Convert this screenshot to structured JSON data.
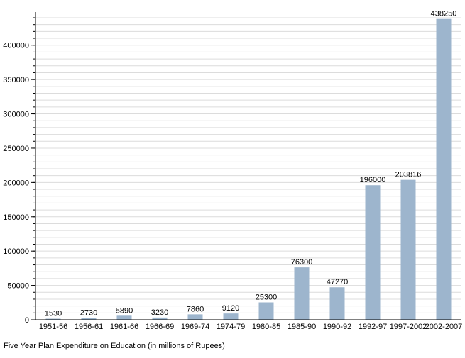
{
  "caption": "Five Year Plan Expenditure on Education (in millions of Rupees)",
  "colors": {
    "bar": "#9db5cd",
    "grid": "#dcdcdc",
    "axis": "#000000",
    "text": "#000000"
  },
  "chart_data": {
    "type": "bar",
    "title": "",
    "xlabel": "",
    "ylabel": "",
    "categories": [
      "1951-56",
      "1956-61",
      "1961-66",
      "1966-69",
      "1969-74",
      "1974-79",
      "1980-85",
      "1985-90",
      "1990-92",
      "1992-97",
      "1997-2002",
      "2002-2007"
    ],
    "values": [
      1530,
      2730,
      5890,
      3230,
      7860,
      9120,
      25300,
      76300,
      47270,
      196000,
      203816,
      438250
    ],
    "ylim": [
      0,
      440000
    ],
    "yticks": [
      0,
      50000,
      100000,
      150000,
      200000,
      250000,
      300000,
      350000,
      400000
    ],
    "data_labels": true,
    "grid": true,
    "legend": "none"
  }
}
